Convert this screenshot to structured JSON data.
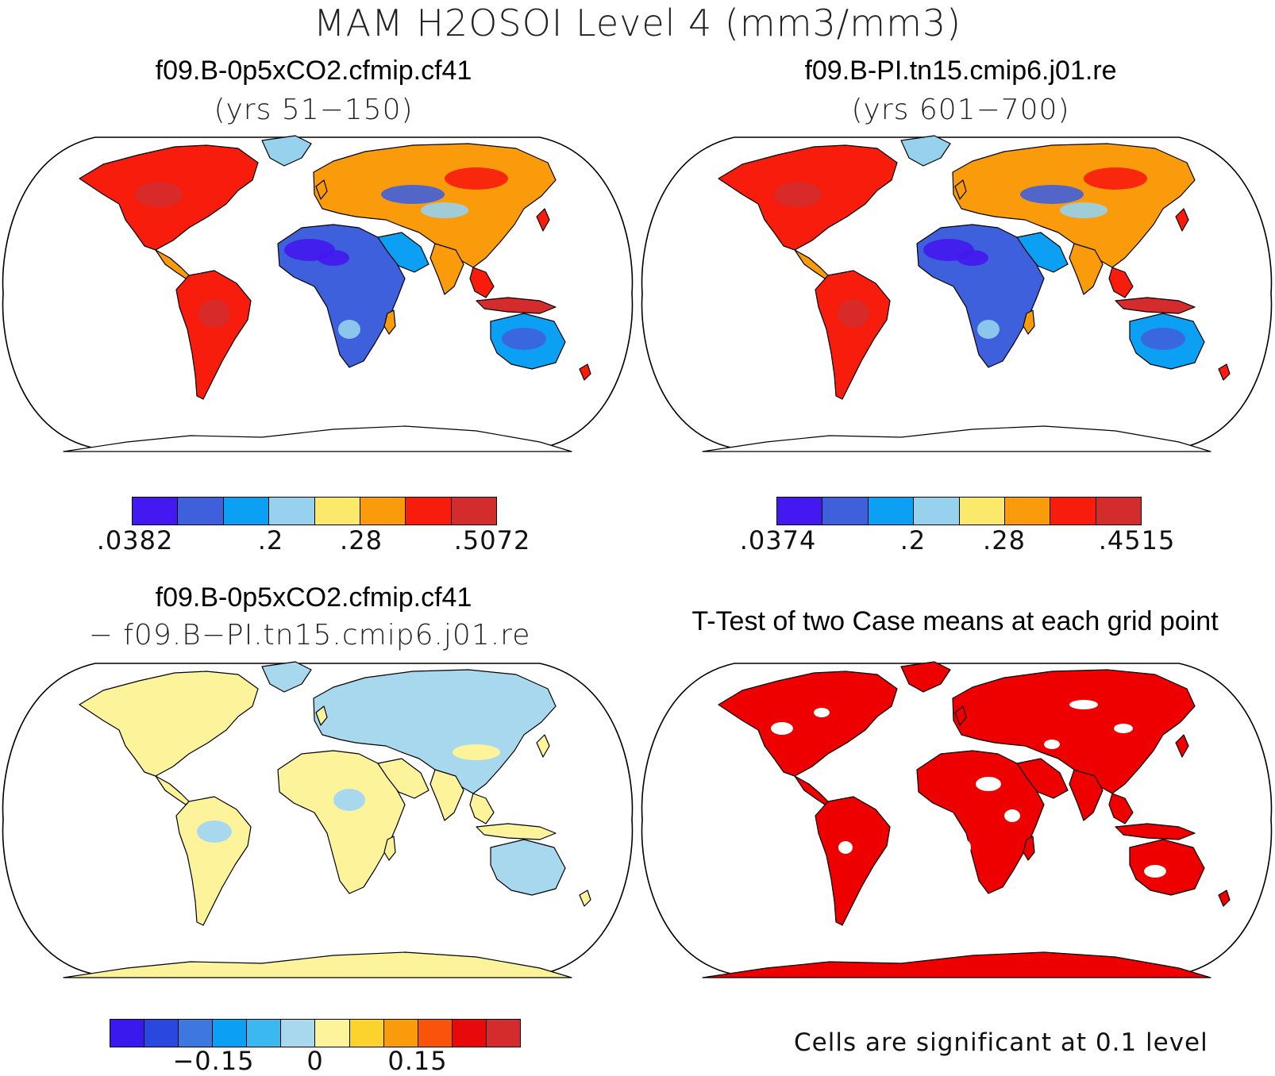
{
  "page": {
    "title": "MAM H2OSOI Level 4 (mm3/mm3)"
  },
  "panels": {
    "top_left": {
      "case": "f09.B-0p5xCO2.cfmip.cf41",
      "years": "(yrs 51−150)",
      "colorbar": {
        "colors": [
          "#4418f0",
          "#3e60dc",
          "#0ca0f5",
          "#96d2ee",
          "#fbe96c",
          "#fa9b0c",
          "#f81c0c",
          "#d42c2c"
        ],
        "labels": [
          ".0382",
          ".2",
          ".28",
          ".5072"
        ]
      }
    },
    "top_right": {
      "case": "f09.B-PI.tn15.cmip6.j01.re",
      "years": "(yrs 601−700)",
      "colorbar": {
        "colors": [
          "#4418f0",
          "#3e60dc",
          "#0ca0f5",
          "#96d2ee",
          "#fbe96c",
          "#fa9b0c",
          "#f81c0c",
          "#d42c2c"
        ],
        "labels": [
          ".0374",
          ".2",
          ".28",
          ".4515"
        ]
      }
    },
    "bottom_left": {
      "case": "f09.B-0p5xCO2.cfmip.cf41",
      "minus_case": "− f09.B−PI.tn15.cmip6.j01.re",
      "colorbar": {
        "colors": [
          "#3a18f0",
          "#2a48e0",
          "#3c78e0",
          "#0ca0f5",
          "#3cb8f0",
          "#a8d8ee",
          "#fcf39a",
          "#fcd22c",
          "#fa9b0c",
          "#fa540c",
          "#e80a0a",
          "#d42c2c"
        ],
        "labels": [
          "−0.15",
          "0",
          "0.15"
        ]
      }
    },
    "bottom_right": {
      "title": "T-Test of two Case means at each grid point",
      "footnote": "Cells are significant at 0.1 level"
    }
  },
  "colors": {
    "outline": "#000000",
    "ttest_significant": "#ee0000"
  }
}
